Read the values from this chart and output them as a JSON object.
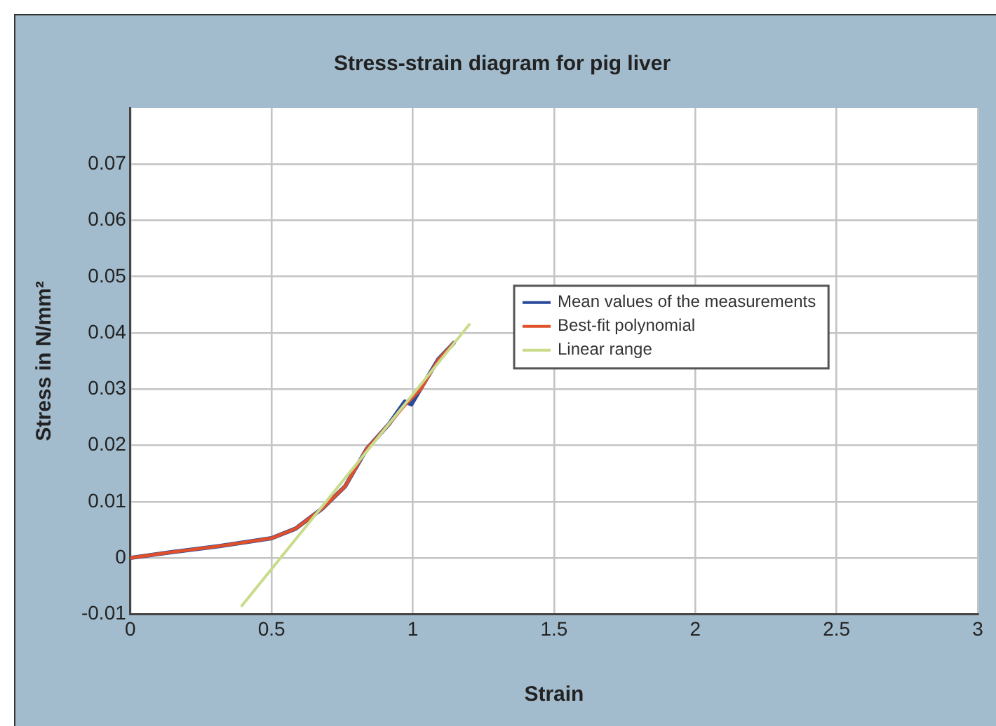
{
  "chart_data": {
    "type": "line",
    "title": "Stress-strain diagram for pig liver",
    "xlabel": "Strain",
    "ylabel": "Stress in N/mm²",
    "xlim": [
      0,
      3
    ],
    "xticks": [
      0,
      0.5,
      1,
      1.5,
      2,
      2.5,
      3
    ],
    "ylim": [
      -0.01,
      0.08
    ],
    "yticks": [
      -0.01,
      0,
      0.01,
      0.02,
      0.03,
      0.04,
      0.05,
      0.06,
      0.07
    ],
    "grid": true,
    "legend": "right",
    "marker": "none",
    "line_style": "solid",
    "series": [
      {
        "name": "Mean values of the measurements",
        "color": "#2b4a9a",
        "x": [
          0,
          0.158,
          0.316,
          0.5,
          0.585,
          0.68,
          0.76,
          0.837,
          0.916,
          0.972,
          0.995,
          1.027,
          1.09,
          1.145
        ],
        "values": [
          0,
          0.0011,
          0.0021,
          0.0035,
          0.0052,
          0.0088,
          0.0127,
          0.0194,
          0.0238,
          0.0278,
          0.0273,
          0.03,
          0.0353,
          0.0382
        ]
      },
      {
        "name": "Best-fit polynomial",
        "color": "#e0502a",
        "x": [
          0,
          0.158,
          0.316,
          0.5,
          0.585,
          0.68,
          0.76,
          0.837,
          0.916,
          0.972,
          1.027,
          1.09,
          1.145
        ],
        "values": [
          0,
          0.0011,
          0.0021,
          0.0035,
          0.0052,
          0.0088,
          0.0127,
          0.0194,
          0.0238,
          0.0272,
          0.0299,
          0.0352,
          0.0382
        ]
      },
      {
        "name": "Linear range",
        "color": "#c8dc8c",
        "x": [
          0.395,
          1.2
        ],
        "values": [
          -0.0085,
          0.0415
        ]
      }
    ]
  }
}
